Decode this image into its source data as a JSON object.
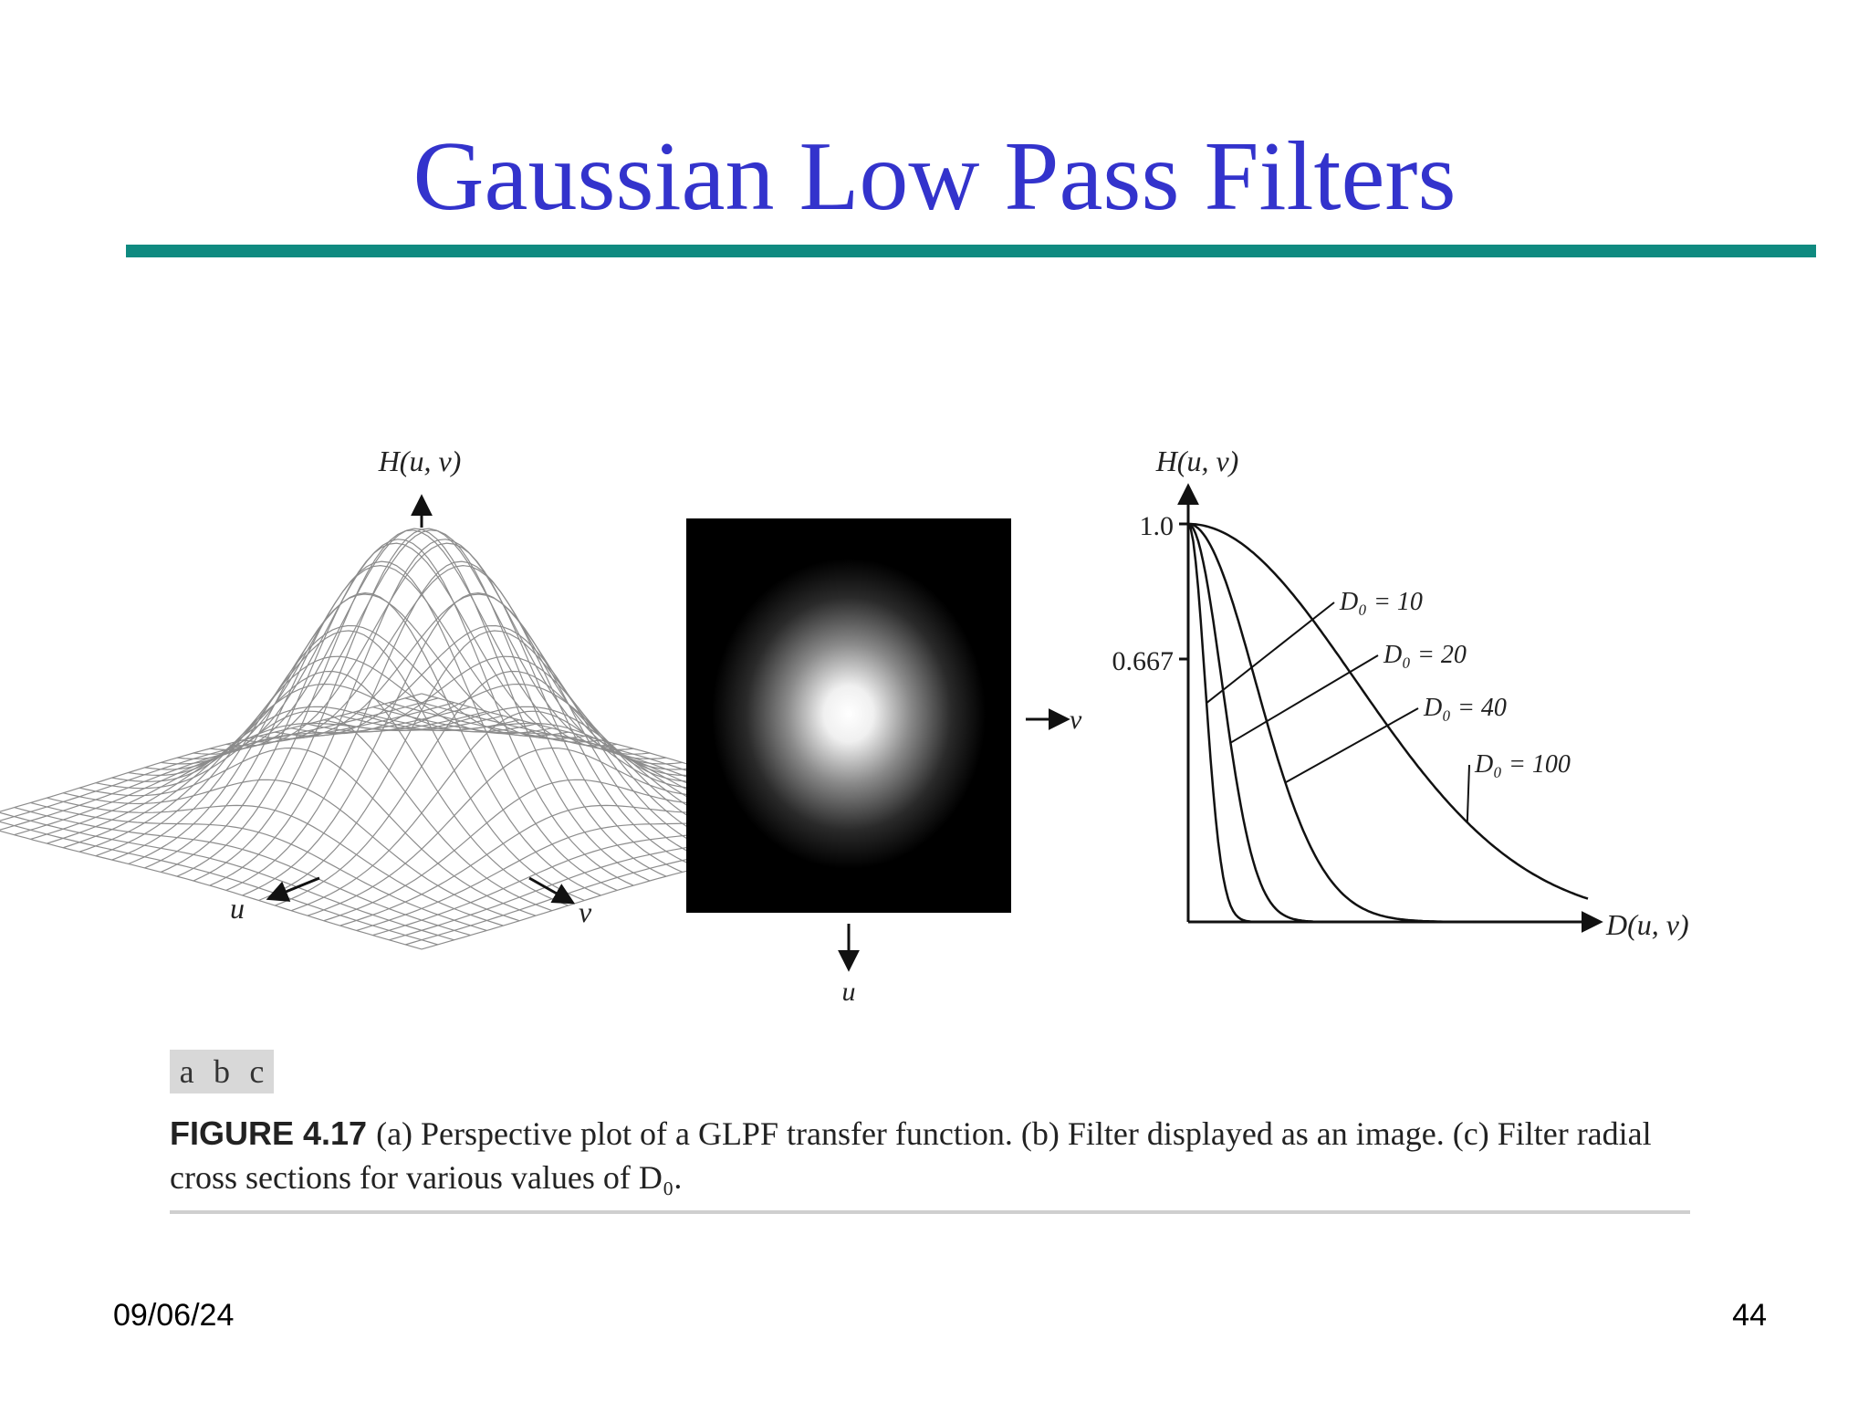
{
  "slide": {
    "title": "Gaussian Low Pass Filters",
    "date": "09/06/24",
    "page_number": "44"
  },
  "figure": {
    "panel_a": {
      "axis_vertical": "H(u, v)",
      "axis_u": "u",
      "axis_v": "v"
    },
    "panel_b": {
      "axis_v": "v",
      "axis_u": "u"
    },
    "panel_c": {
      "axis_vertical": "H(u, v)",
      "axis_horizontal": "D(u, v)",
      "tick_1": "1.0",
      "tick_0667": "0.667"
    },
    "panel_letters": [
      "a",
      "b",
      "c"
    ],
    "caption_label": "FIGURE 4.17",
    "caption_text": "(a) Perspective plot of a GLPF transfer function. (b) Filter displayed as an image. (c) Filter radial cross sections for various values of D₀."
  },
  "chart_data": {
    "type": "line",
    "title": "",
    "xlabel": "D(u, v)",
    "ylabel": "H(u, v)",
    "yticks": [
      "1.0",
      "0.667"
    ],
    "ylim": [
      0,
      1
    ],
    "series": [
      {
        "name": "D₀ = 10",
        "d0": 10
      },
      {
        "name": "D₀ = 20",
        "d0": 20
      },
      {
        "name": "D₀ = 40",
        "d0": 40
      },
      {
        "name": "D₀ = 100",
        "d0": 100
      }
    ]
  }
}
